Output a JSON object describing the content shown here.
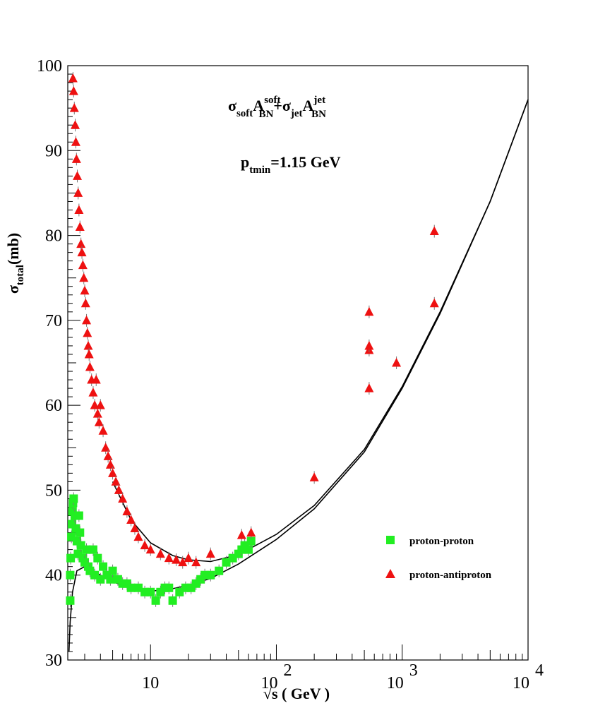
{
  "chart_data": {
    "type": "scatter",
    "xscale": "log",
    "xlabel": "√s ( GeV )",
    "ylabel": "σtotal(mb)",
    "xlim": [
      2.2,
      10000
    ],
    "ylim": [
      30,
      100
    ],
    "x_ticks": [
      {
        "value": 10,
        "base": "10",
        "exp": ""
      },
      {
        "value": 100,
        "base": "10",
        "exp": "2"
      },
      {
        "value": 1000,
        "base": "10",
        "exp": "3"
      },
      {
        "value": 10000,
        "base": "10",
        "exp": "4"
      }
    ],
    "y_ticks": [
      30,
      40,
      50,
      60,
      70,
      80,
      90,
      100
    ],
    "annotations": {
      "formula": {
        "sigma": "σ",
        "soft": "soft",
        "A": "A",
        "BN": "BN",
        "plus": "+",
        "jet": "jet"
      },
      "ptmin": {
        "p": "p",
        "sub": "tmin",
        "rest": "=1.15 GeV"
      }
    },
    "legend": [
      {
        "label": "proton-proton",
        "marker": "square",
        "color": "#22ee22"
      },
      {
        "label": "proton-antiproton",
        "marker": "triangle",
        "color": "#ee1111"
      }
    ],
    "series": [
      {
        "name": "proton-proton",
        "marker": "square",
        "color": "#22ee22",
        "points": [
          [
            2.3,
            37
          ],
          [
            2.3,
            40
          ],
          [
            2.32,
            42
          ],
          [
            2.35,
            44.5
          ],
          [
            2.38,
            46
          ],
          [
            2.4,
            47.5
          ],
          [
            2.42,
            48.5
          ],
          [
            2.45,
            49
          ],
          [
            2.5,
            47
          ],
          [
            2.55,
            45.5
          ],
          [
            2.6,
            44
          ],
          [
            2.65,
            42.5
          ],
          [
            2.7,
            47
          ],
          [
            2.75,
            45
          ],
          [
            2.8,
            43.5
          ],
          [
            2.9,
            42
          ],
          [
            3.0,
            41.5
          ],
          [
            3.1,
            43
          ],
          [
            3.2,
            41
          ],
          [
            3.3,
            40.5
          ],
          [
            3.5,
            43
          ],
          [
            3.6,
            40
          ],
          [
            3.8,
            42
          ],
          [
            4.0,
            39.5
          ],
          [
            4.2,
            41
          ],
          [
            4.5,
            40
          ],
          [
            4.8,
            39.5
          ],
          [
            5.0,
            40.5
          ],
          [
            5.5,
            39.5
          ],
          [
            6.0,
            39
          ],
          [
            6.5,
            39
          ],
          [
            7.0,
            38.5
          ],
          [
            8.0,
            38.5
          ],
          [
            9.0,
            38
          ],
          [
            10,
            38
          ],
          [
            11,
            37
          ],
          [
            12,
            38
          ],
          [
            13,
            38.5
          ],
          [
            14,
            38.5
          ],
          [
            15,
            37
          ],
          [
            17,
            38
          ],
          [
            19,
            38.5
          ],
          [
            21,
            38.5
          ],
          [
            23,
            39
          ],
          [
            25,
            39.5
          ],
          [
            27,
            40
          ],
          [
            30,
            40
          ],
          [
            35,
            40.5
          ],
          [
            40,
            41.5
          ],
          [
            45,
            42
          ],
          [
            50,
            42.5
          ],
          [
            53,
            43
          ],
          [
            56,
            43.5
          ],
          [
            60,
            43
          ],
          [
            63,
            44
          ]
        ]
      },
      {
        "name": "proton-antiproton",
        "marker": "triangle",
        "color": "#ee1111",
        "points": [
          [
            2.42,
            98.5
          ],
          [
            2.45,
            97
          ],
          [
            2.48,
            95
          ],
          [
            2.52,
            93
          ],
          [
            2.55,
            91
          ],
          [
            2.58,
            89
          ],
          [
            2.62,
            87
          ],
          [
            2.66,
            85
          ],
          [
            2.7,
            83
          ],
          [
            2.75,
            81
          ],
          [
            2.8,
            79
          ],
          [
            2.85,
            78
          ],
          [
            2.9,
            76.5
          ],
          [
            2.95,
            75
          ],
          [
            3.0,
            73.5
          ],
          [
            3.05,
            72
          ],
          [
            3.1,
            70
          ],
          [
            3.15,
            68.5
          ],
          [
            3.2,
            67
          ],
          [
            3.25,
            66
          ],
          [
            3.3,
            64.5
          ],
          [
            3.4,
            63
          ],
          [
            3.5,
            61.5
          ],
          [
            3.6,
            60
          ],
          [
            3.7,
            63
          ],
          [
            3.8,
            59
          ],
          [
            3.9,
            58
          ],
          [
            4.0,
            60
          ],
          [
            4.2,
            57
          ],
          [
            4.4,
            55
          ],
          [
            4.6,
            54
          ],
          [
            4.8,
            53
          ],
          [
            5.0,
            52
          ],
          [
            5.3,
            51
          ],
          [
            5.6,
            50
          ],
          [
            6.0,
            49
          ],
          [
            6.5,
            47.5
          ],
          [
            7.0,
            46.5
          ],
          [
            7.5,
            45.5
          ],
          [
            8.0,
            44.5
          ],
          [
            9.0,
            43.5
          ],
          [
            10,
            43
          ],
          [
            12,
            42.5
          ],
          [
            14,
            42
          ],
          [
            16,
            41.8
          ],
          [
            18,
            41.5
          ],
          [
            20,
            42
          ],
          [
            23,
            41.5
          ],
          [
            30,
            42.5
          ],
          [
            53,
            44.7
          ],
          [
            63,
            45
          ],
          [
            200,
            51.5
          ],
          [
            546,
            62
          ],
          [
            546,
            66.5
          ],
          [
            546,
            67
          ],
          [
            546,
            71
          ],
          [
            900,
            65
          ],
          [
            1800,
            72
          ],
          [
            1800,
            80.5
          ]
        ]
      }
    ],
    "fit_curves": [
      {
        "name": "proton-proton fit",
        "points": [
          [
            2.25,
            31
          ],
          [
            2.3,
            34.5
          ],
          [
            2.4,
            38
          ],
          [
            2.6,
            40.5
          ],
          [
            3.0,
            41
          ],
          [
            4.0,
            40
          ],
          [
            5.0,
            39.2
          ],
          [
            7.0,
            38.5
          ],
          [
            10,
            38.1
          ],
          [
            15,
            38.4
          ],
          [
            20,
            38.8
          ],
          [
            30,
            39.6
          ],
          [
            50,
            41.3
          ],
          [
            100,
            44.2
          ],
          [
            200,
            47.8
          ],
          [
            500,
            54.5
          ],
          [
            1000,
            62
          ],
          [
            2000,
            70.8
          ],
          [
            5000,
            84
          ],
          [
            10000,
            96
          ]
        ]
      },
      {
        "name": "proton-antiproton fit",
        "points": [
          [
            5.0,
            51
          ],
          [
            7.0,
            46.5
          ],
          [
            10,
            43.8
          ],
          [
            15,
            42.3
          ],
          [
            20,
            41.8
          ],
          [
            30,
            41.6
          ],
          [
            50,
            42.4
          ],
          [
            100,
            44.8
          ],
          [
            200,
            48.2
          ],
          [
            500,
            54.8
          ],
          [
            1000,
            62.2
          ],
          [
            2000,
            71
          ],
          [
            5000,
            84
          ],
          [
            10000,
            96
          ]
        ]
      }
    ]
  }
}
